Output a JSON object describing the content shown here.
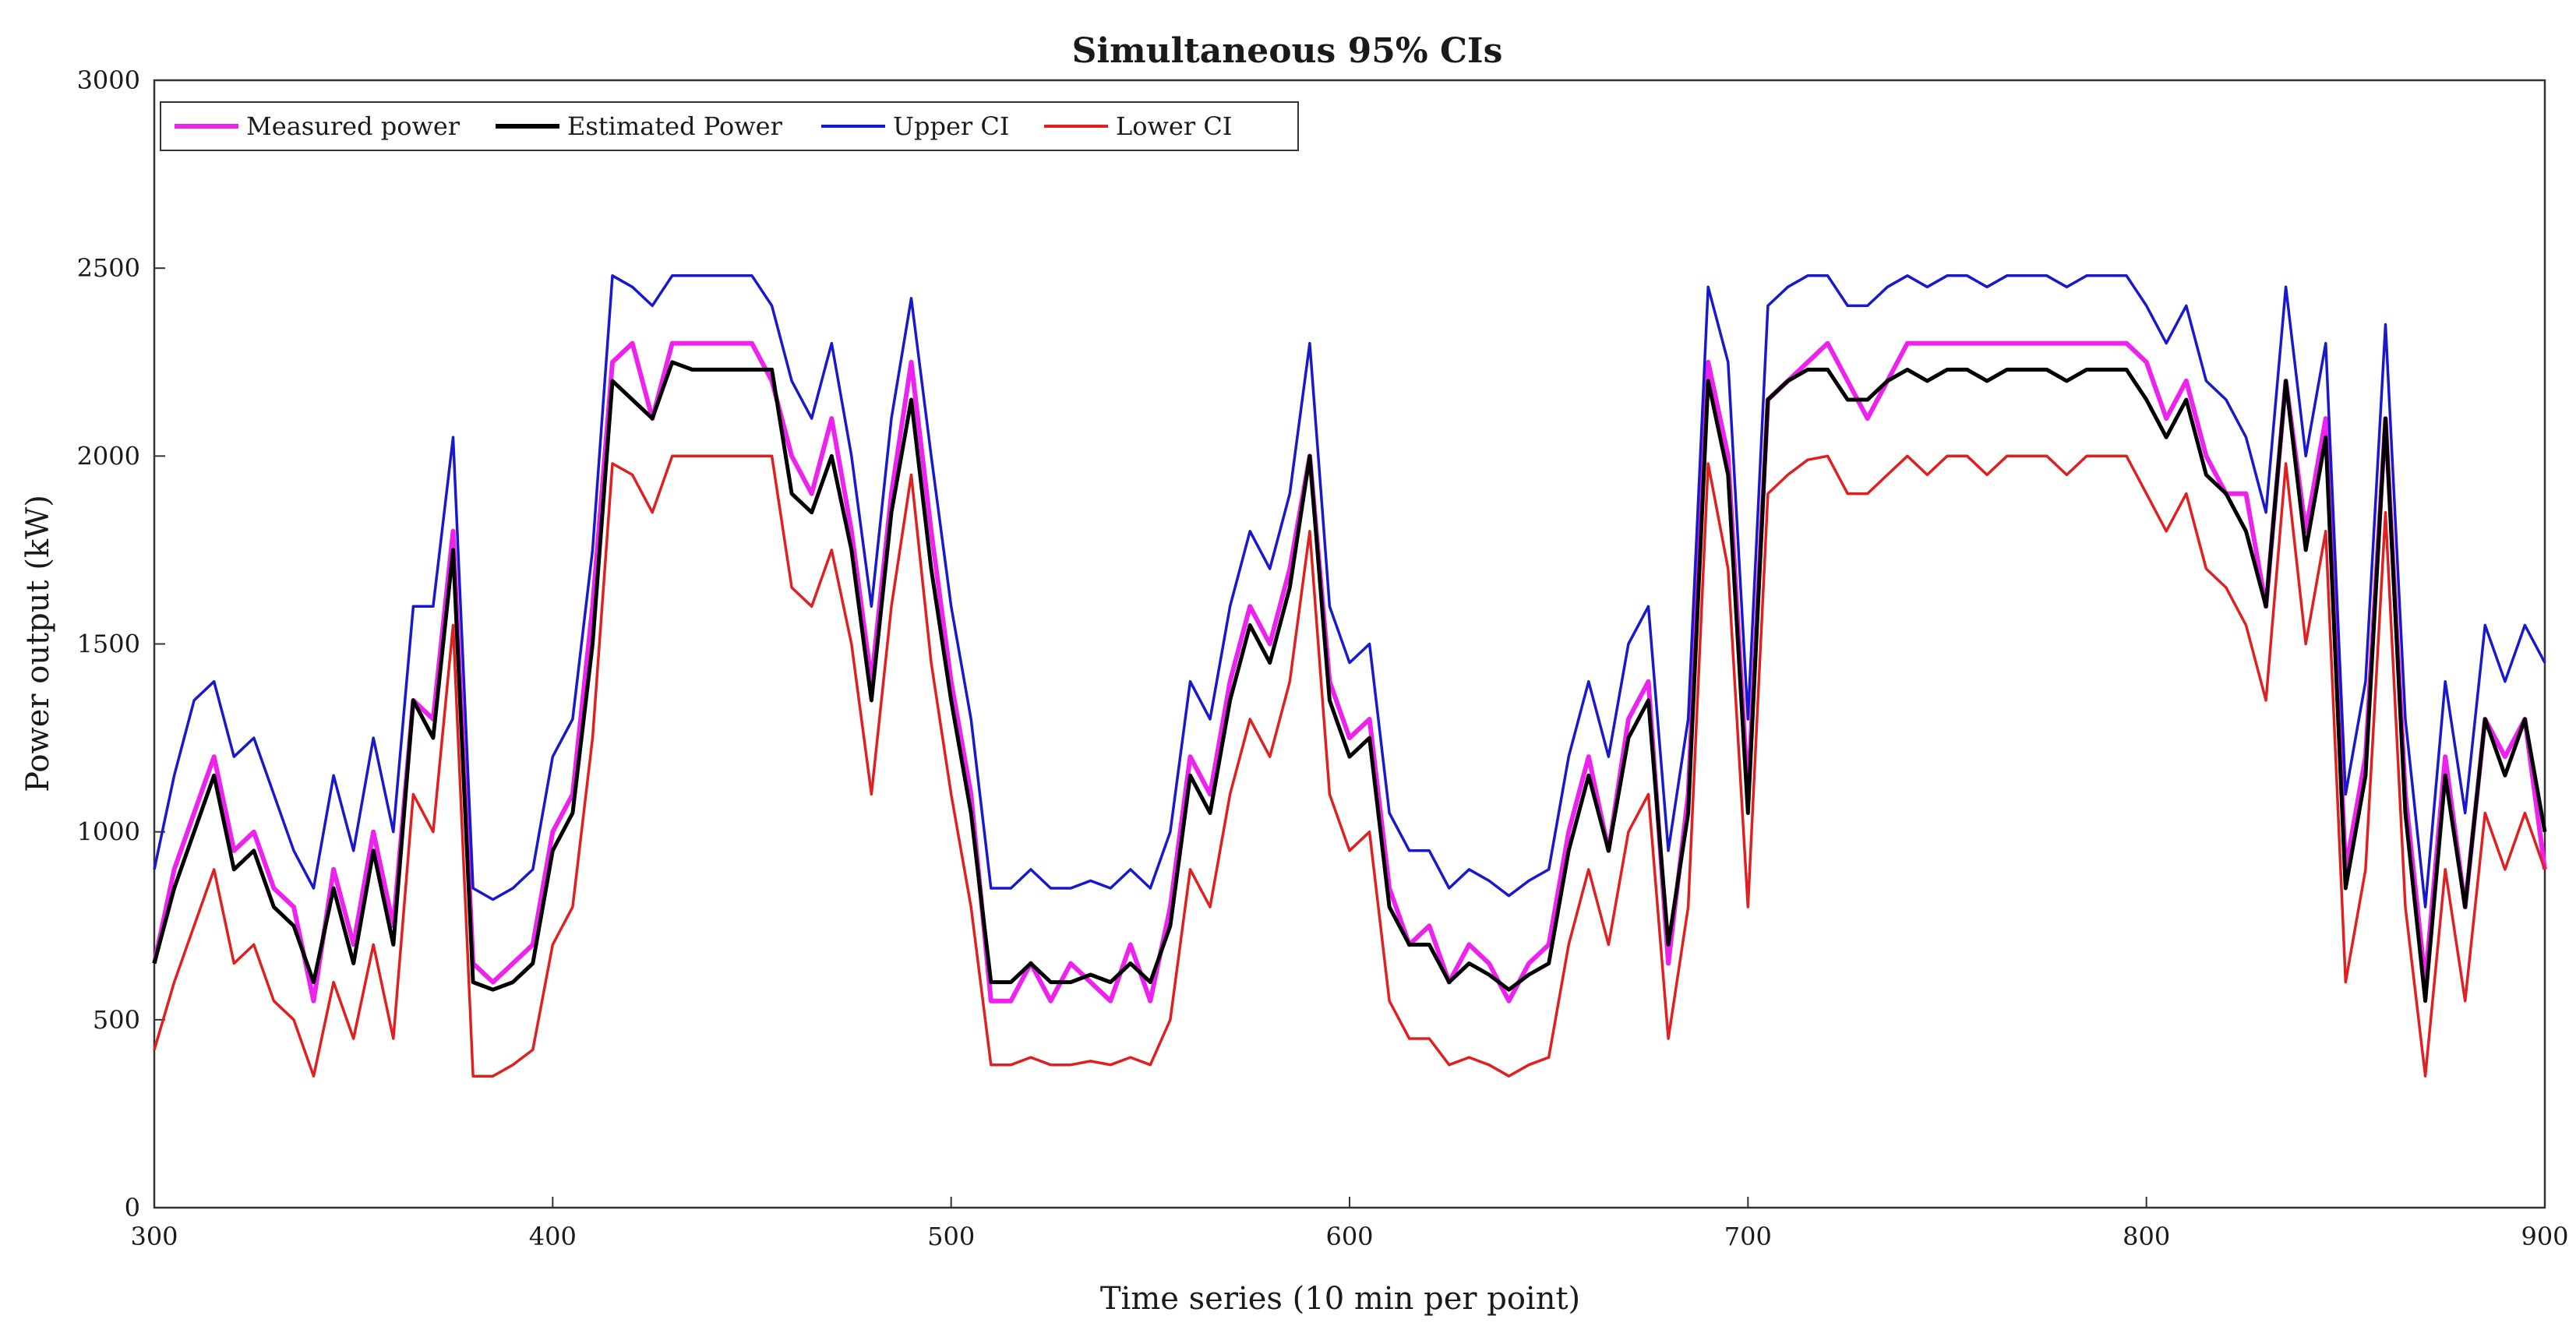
{
  "chart_data": {
    "type": "line",
    "title": "Simultaneous 95% CIs",
    "xlabel": "Time series (10 min per point)",
    "ylabel": "Power output (kW)",
    "xlim": [
      300,
      900
    ],
    "ylim": [
      0,
      3000
    ],
    "xticks": [
      300,
      400,
      500,
      600,
      700,
      800,
      900
    ],
    "yticks": [
      0,
      500,
      1000,
      1500,
      2000,
      2500,
      3000
    ],
    "grid": false,
    "legend_position": "top-left",
    "legend": [
      "Measured power",
      "Estimated Power",
      "Upper CI",
      "Lower CI"
    ],
    "x": [
      300,
      305,
      310,
      315,
      320,
      325,
      330,
      335,
      340,
      345,
      350,
      355,
      360,
      365,
      370,
      375,
      380,
      385,
      390,
      395,
      400,
      405,
      410,
      415,
      420,
      425,
      430,
      435,
      440,
      445,
      450,
      455,
      460,
      465,
      470,
      475,
      480,
      485,
      490,
      495,
      500,
      505,
      510,
      515,
      520,
      525,
      530,
      535,
      540,
      545,
      550,
      555,
      560,
      565,
      570,
      575,
      580,
      585,
      590,
      595,
      600,
      605,
      610,
      615,
      620,
      625,
      630,
      635,
      640,
      645,
      650,
      655,
      660,
      665,
      670,
      675,
      680,
      685,
      690,
      695,
      700,
      705,
      710,
      715,
      720,
      725,
      730,
      735,
      740,
      745,
      750,
      755,
      760,
      765,
      770,
      775,
      780,
      785,
      790,
      795,
      800,
      805,
      810,
      815,
      820,
      825,
      830,
      835,
      840,
      845,
      850,
      855,
      860,
      865,
      870,
      875,
      880,
      885,
      890,
      895,
      900
    ],
    "series": [
      {
        "name": "Measured power",
        "color": "#ee22ee",
        "values": [
          650,
          900,
          1050,
          1200,
          950,
          1000,
          850,
          800,
          550,
          900,
          700,
          1000,
          750,
          1350,
          1300,
          1800,
          650,
          600,
          650,
          700,
          1000,
          1100,
          1600,
          2250,
          2300,
          2100,
          2300,
          2300,
          2300,
          2300,
          2300,
          2200,
          2000,
          1900,
          2100,
          1800,
          1400,
          1900,
          2250,
          1800,
          1400,
          1100,
          550,
          550,
          650,
          550,
          650,
          600,
          550,
          700,
          550,
          800,
          1200,
          1100,
          1400,
          1600,
          1500,
          1700,
          2000,
          1400,
          1250,
          1300,
          850,
          700,
          750,
          600,
          700,
          650,
          550,
          650,
          700,
          1000,
          1200,
          950,
          1300,
          1400,
          650,
          1100,
          2250,
          2000,
          1100,
          2150,
          2200,
          2250,
          2300,
          2200,
          2100,
          2200,
          2300,
          2300,
          2300,
          2300,
          2300,
          2300,
          2300,
          2300,
          2300,
          2300,
          2300,
          2300,
          2250,
          2100,
          2200,
          2000,
          1900,
          1900,
          1600,
          2200,
          1800,
          2100,
          900,
          1200,
          2100,
          1100,
          600,
          1200,
          800,
          1300,
          1200,
          1300,
          900
        ]
      },
      {
        "name": "Estimated Power",
        "color": "#000000",
        "values": [
          650,
          850,
          1000,
          1150,
          900,
          950,
          800,
          750,
          600,
          850,
          650,
          950,
          700,
          1350,
          1250,
          1750,
          600,
          580,
          600,
          650,
          950,
          1050,
          1500,
          2200,
          2150,
          2100,
          2250,
          2230,
          2230,
          2230,
          2230,
          2230,
          1900,
          1850,
          2000,
          1750,
          1350,
          1850,
          2150,
          1700,
          1350,
          1050,
          600,
          600,
          650,
          600,
          600,
          620,
          600,
          650,
          600,
          750,
          1150,
          1050,
          1350,
          1550,
          1450,
          1650,
          2000,
          1350,
          1200,
          1250,
          800,
          700,
          700,
          600,
          650,
          620,
          580,
          620,
          650,
          950,
          1150,
          950,
          1250,
          1350,
          700,
          1050,
          2200,
          1950,
          1050,
          2150,
          2200,
          2230,
          2230,
          2150,
          2150,
          2200,
          2230,
          2200,
          2230,
          2230,
          2200,
          2230,
          2230,
          2230,
          2200,
          2230,
          2230,
          2230,
          2150,
          2050,
          2150,
          1950,
          1900,
          1800,
          1600,
          2200,
          1750,
          2050,
          850,
          1150,
          2100,
          1050,
          550,
          1150,
          800,
          1300,
          1150,
          1300,
          1000
        ]
      },
      {
        "name": "Upper CI",
        "color": "#1818cc",
        "values": [
          900,
          1150,
          1350,
          1400,
          1200,
          1250,
          1100,
          950,
          850,
          1150,
          950,
          1250,
          1000,
          1600,
          1600,
          2050,
          850,
          820,
          850,
          900,
          1200,
          1300,
          1750,
          2480,
          2450,
          2400,
          2480,
          2480,
          2480,
          2480,
          2480,
          2400,
          2200,
          2100,
          2300,
          2000,
          1600,
          2100,
          2420,
          2000,
          1600,
          1300,
          850,
          850,
          900,
          850,
          850,
          870,
          850,
          900,
          850,
          1000,
          1400,
          1300,
          1600,
          1800,
          1700,
          1900,
          2300,
          1600,
          1450,
          1500,
          1050,
          950,
          950,
          850,
          900,
          870,
          830,
          870,
          900,
          1200,
          1400,
          1200,
          1500,
          1600,
          950,
          1300,
          2450,
          2250,
          1300,
          2400,
          2450,
          2480,
          2480,
          2400,
          2400,
          2450,
          2480,
          2450,
          2480,
          2480,
          2450,
          2480,
          2480,
          2480,
          2450,
          2480,
          2480,
          2480,
          2400,
          2300,
          2400,
          2200,
          2150,
          2050,
          1850,
          2450,
          2000,
          2300,
          1100,
          1400,
          2350,
          1300,
          800,
          1400,
          1050,
          1550,
          1400,
          1550,
          1450
        ]
      },
      {
        "name": "Lower CI",
        "color": "#e02020",
        "values": [
          420,
          600,
          750,
          900,
          650,
          700,
          550,
          500,
          350,
          600,
          450,
          700,
          450,
          1100,
          1000,
          1550,
          350,
          350,
          380,
          420,
          700,
          800,
          1250,
          1980,
          1950,
          1850,
          2000,
          2000,
          2000,
          2000,
          2000,
          2000,
          1650,
          1600,
          1750,
          1500,
          1100,
          1600,
          1950,
          1450,
          1100,
          800,
          380,
          380,
          400,
          380,
          380,
          390,
          380,
          400,
          380,
          500,
          900,
          800,
          1100,
          1300,
          1200,
          1400,
          1800,
          1100,
          950,
          1000,
          550,
          450,
          450,
          380,
          400,
          380,
          350,
          380,
          400,
          700,
          900,
          700,
          1000,
          1100,
          450,
          800,
          1980,
          1700,
          800,
          1900,
          1950,
          1990,
          2000,
          1900,
          1900,
          1950,
          2000,
          1950,
          2000,
          2000,
          1950,
          2000,
          2000,
          2000,
          1950,
          2000,
          2000,
          2000,
          1900,
          1800,
          1900,
          1700,
          1650,
          1550,
          1350,
          1980,
          1500,
          1800,
          600,
          900,
          1850,
          800,
          350,
          900,
          550,
          1050,
          900,
          1050,
          900
        ]
      }
    ]
  }
}
